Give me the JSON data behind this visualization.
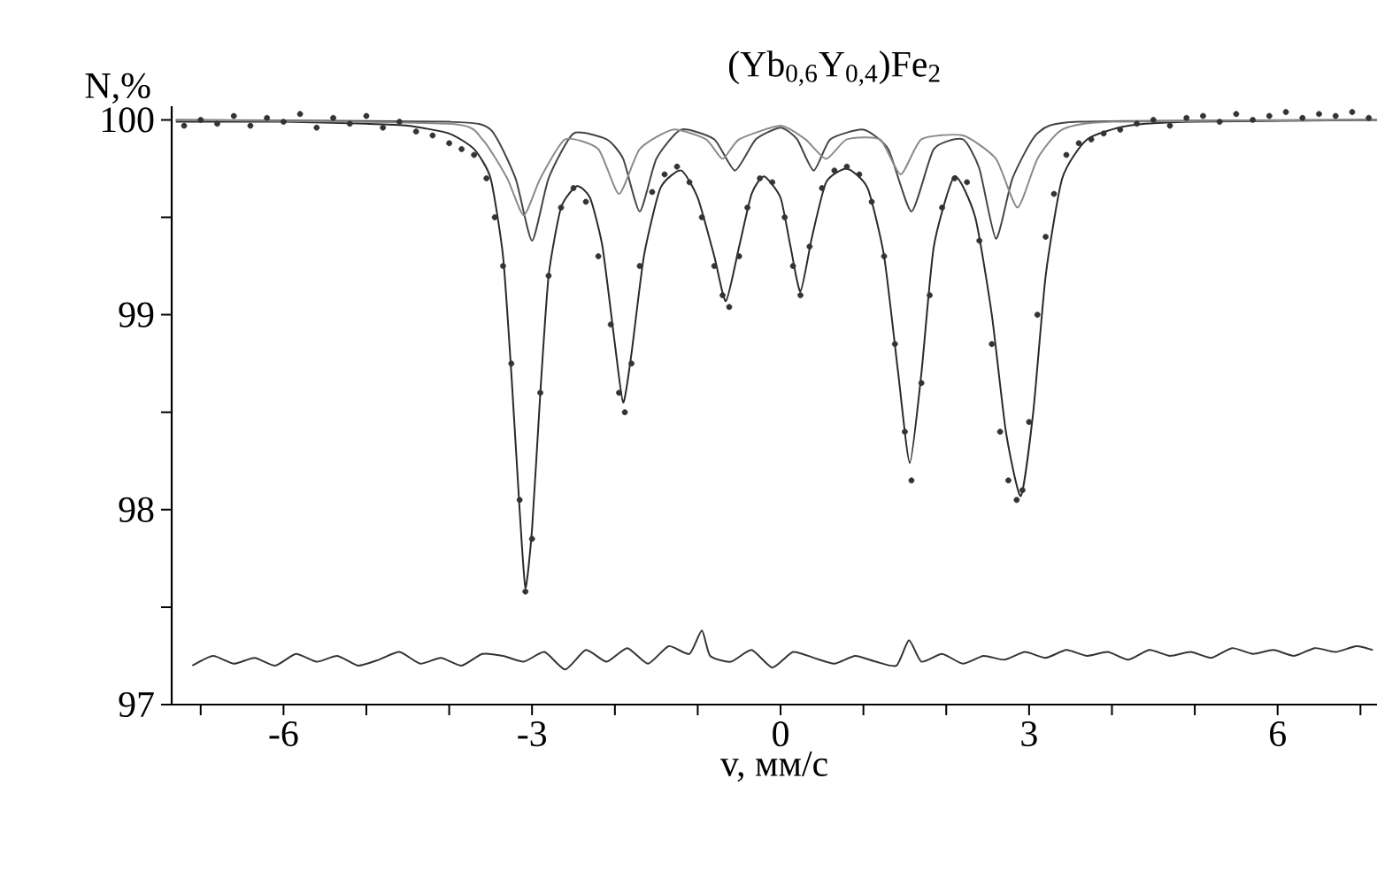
{
  "chart_data": {
    "type": "line",
    "title": "(Yb$_{0,6}$Y$_{0,4}$)Fe$_{2}$",
    "xlabel": "v, мм/с",
    "ylabel": "N,%",
    "xlim": [
      -7.35,
      7.2
    ],
    "ylim": [
      97,
      100.07
    ],
    "xticks": [
      {
        "value": -7,
        "label": null
      },
      -6,
      {
        "value": -5,
        "label": null
      },
      {
        "value": -4,
        "label": null
      },
      -3,
      {
        "value": -2,
        "label": null
      },
      {
        "value": -1,
        "label": null
      },
      0,
      {
        "value": 1,
        "label": null
      },
      {
        "value": 2,
        "label": null
      },
      3,
      {
        "value": 4,
        "label": null
      },
      {
        "value": 5,
        "label": null
      },
      6,
      {
        "value": 7,
        "label": null
      }
    ],
    "yticks": [
      97,
      {
        "value": 97.5,
        "label": null
      },
      98,
      {
        "value": 98.5,
        "label": null
      },
      99,
      {
        "value": 99.5,
        "label": null
      },
      100
    ],
    "series": [
      {
        "type": "scatter",
        "color": "#333333",
        "x": [
          -7.2,
          -7.0,
          -6.8,
          -6.6,
          -6.4,
          -6.2,
          -6.0,
          -5.8,
          -5.6,
          -5.4,
          -5.2,
          -5.0,
          -4.8,
          -4.6,
          -4.4,
          -4.2,
          -4.0,
          -3.85,
          -3.7,
          -3.55,
          -3.45,
          -3.35,
          -3.25,
          -3.15,
          -3.08,
          -3.0,
          -2.9,
          -2.8,
          -2.65,
          -2.5,
          -2.35,
          -2.2,
          -2.05,
          -1.95,
          -1.88,
          -1.8,
          -1.7,
          -1.55,
          -1.4,
          -1.25,
          -1.1,
          -0.95,
          -0.8,
          -0.7,
          -0.62,
          -0.5,
          -0.4,
          -0.25,
          -0.1,
          0.05,
          0.15,
          0.24,
          0.35,
          0.5,
          0.65,
          0.8,
          0.95,
          1.1,
          1.25,
          1.38,
          1.5,
          1.58,
          1.7,
          1.8,
          1.95,
          2.1,
          2.25,
          2.4,
          2.55,
          2.65,
          2.75,
          2.85,
          2.92,
          3.0,
          3.1,
          3.2,
          3.3,
          3.45,
          3.6,
          3.75,
          3.9,
          4.1,
          4.3,
          4.5,
          4.7,
          4.9,
          5.1,
          5.3,
          5.5,
          5.7,
          5.9,
          6.1,
          6.3,
          6.5,
          6.7,
          6.9,
          7.1
        ],
        "values": [
          99.97,
          100.0,
          99.98,
          100.02,
          99.97,
          100.01,
          99.99,
          100.03,
          99.96,
          100.01,
          99.98,
          100.02,
          99.96,
          99.99,
          99.94,
          99.92,
          99.88,
          99.85,
          99.82,
          99.7,
          99.5,
          99.25,
          98.75,
          98.05,
          97.58,
          97.85,
          98.6,
          99.2,
          99.55,
          99.65,
          99.58,
          99.3,
          98.95,
          98.6,
          98.5,
          98.75,
          99.25,
          99.63,
          99.72,
          99.76,
          99.68,
          99.5,
          99.25,
          99.1,
          99.04,
          99.3,
          99.55,
          99.7,
          99.68,
          99.5,
          99.25,
          99.1,
          99.35,
          99.65,
          99.74,
          99.76,
          99.72,
          99.58,
          99.3,
          98.85,
          98.4,
          98.15,
          98.65,
          99.1,
          99.55,
          99.7,
          99.68,
          99.38,
          98.85,
          98.4,
          98.15,
          98.05,
          98.1,
          98.45,
          99.0,
          99.4,
          99.62,
          99.82,
          99.88,
          99.9,
          99.93,
          99.95,
          99.98,
          100.0,
          99.97,
          100.01,
          100.02,
          99.99,
          100.03,
          100.0,
          100.02,
          100.04,
          100.01,
          100.03,
          100.02,
          100.04,
          100.01
        ]
      },
      {
        "color": "#2a2a2a",
        "x": [
          -7.3,
          -6,
          -5,
          -4.5,
          -4,
          -3.7,
          -3.5,
          -3.35,
          -3.25,
          -3.15,
          -3.08,
          -3.0,
          -2.9,
          -2.8,
          -2.65,
          -2.46,
          -2.3,
          -2.15,
          -2.0,
          -1.9,
          -1.8,
          -1.65,
          -1.45,
          -1.2,
          -1.0,
          -0.8,
          -0.66,
          -0.5,
          -0.35,
          -0.2,
          0.0,
          0.12,
          0.24,
          0.38,
          0.55,
          0.8,
          1.05,
          1.25,
          1.42,
          1.56,
          1.7,
          1.85,
          2.1,
          2.35,
          2.55,
          2.72,
          2.9,
          3.05,
          3.2,
          3.4,
          3.7,
          4.2,
          5,
          7.2
        ],
        "values": [
          99.99,
          99.99,
          99.98,
          99.97,
          99.93,
          99.85,
          99.7,
          99.3,
          98.7,
          98.0,
          97.6,
          97.9,
          98.6,
          99.2,
          99.55,
          99.66,
          99.6,
          99.35,
          98.85,
          98.55,
          98.8,
          99.3,
          99.65,
          99.74,
          99.6,
          99.3,
          99.07,
          99.35,
          99.62,
          99.71,
          99.6,
          99.35,
          99.12,
          99.4,
          99.68,
          99.75,
          99.65,
          99.3,
          98.7,
          98.24,
          98.7,
          99.35,
          99.71,
          99.5,
          99.0,
          98.4,
          98.07,
          98.5,
          99.2,
          99.7,
          99.9,
          99.97,
          99.99,
          100.0
        ]
      },
      {
        "color": "#444444",
        "x": [
          -7.3,
          -4,
          -3.5,
          -3.2,
          -3.0,
          -2.8,
          -2.5,
          -2.1,
          -1.9,
          -1.7,
          -1.5,
          -1.2,
          -0.8,
          -0.55,
          -0.3,
          0,
          0.2,
          0.4,
          0.6,
          1.0,
          1.3,
          1.58,
          1.85,
          2.2,
          2.4,
          2.6,
          2.8,
          3.1,
          3.6,
          7.2
        ],
        "values": [
          100.0,
          99.99,
          99.95,
          99.7,
          99.38,
          99.7,
          99.93,
          99.9,
          99.8,
          99.53,
          99.8,
          99.95,
          99.9,
          99.74,
          99.9,
          99.96,
          99.9,
          99.74,
          99.9,
          99.95,
          99.85,
          99.53,
          99.85,
          99.9,
          99.75,
          99.39,
          99.7,
          99.93,
          99.99,
          100.0
        ]
      },
      {
        "color": "#8a8a8a",
        "x": [
          -7.3,
          -4,
          -3.6,
          -3.3,
          -3.1,
          -2.9,
          -2.6,
          -2.2,
          -1.95,
          -1.7,
          -1.3,
          -0.9,
          -0.7,
          -0.5,
          0,
          0.3,
          0.55,
          0.8,
          1.2,
          1.45,
          1.7,
          2.2,
          2.6,
          2.86,
          3.1,
          3.4,
          4,
          7.2
        ],
        "values": [
          100.0,
          99.98,
          99.9,
          99.7,
          99.51,
          99.7,
          99.9,
          99.85,
          99.62,
          99.85,
          99.95,
          99.9,
          99.8,
          99.9,
          99.97,
          99.9,
          99.8,
          99.9,
          99.9,
          99.72,
          99.9,
          99.92,
          99.8,
          99.55,
          99.8,
          99.95,
          99.99,
          100.0
        ]
      },
      {
        "color": "#333333",
        "x": [
          -7.1,
          -6.85,
          -6.6,
          -6.35,
          -6.1,
          -5.85,
          -5.6,
          -5.35,
          -5.1,
          -4.85,
          -4.6,
          -4.35,
          -4.1,
          -3.85,
          -3.6,
          -3.35,
          -3.1,
          -2.85,
          -2.6,
          -2.35,
          -2.1,
          -1.85,
          -1.6,
          -1.35,
          -1.1,
          -0.95,
          -0.85,
          -0.6,
          -0.35,
          -0.1,
          0.15,
          0.4,
          0.65,
          0.9,
          1.15,
          1.4,
          1.55,
          1.7,
          1.95,
          2.2,
          2.45,
          2.7,
          2.95,
          3.2,
          3.45,
          3.7,
          3.95,
          4.2,
          4.45,
          4.7,
          4.95,
          5.2,
          5.45,
          5.7,
          5.95,
          6.2,
          6.45,
          6.7,
          6.95,
          7.15
        ],
        "values": [
          97.2,
          97.25,
          97.21,
          97.24,
          97.2,
          97.26,
          97.22,
          97.25,
          97.2,
          97.23,
          97.27,
          97.21,
          97.24,
          97.2,
          97.26,
          97.25,
          97.22,
          97.27,
          97.18,
          97.28,
          97.22,
          97.29,
          97.21,
          97.3,
          97.26,
          97.38,
          97.25,
          97.22,
          97.28,
          97.19,
          97.27,
          97.24,
          97.21,
          97.25,
          97.22,
          97.2,
          97.33,
          97.22,
          97.26,
          97.21,
          97.25,
          97.23,
          97.27,
          97.24,
          97.28,
          97.25,
          97.27,
          97.23,
          97.28,
          97.25,
          97.27,
          97.24,
          97.29,
          97.26,
          97.28,
          97.25,
          97.29,
          97.27,
          97.3,
          97.28
        ]
      }
    ]
  }
}
